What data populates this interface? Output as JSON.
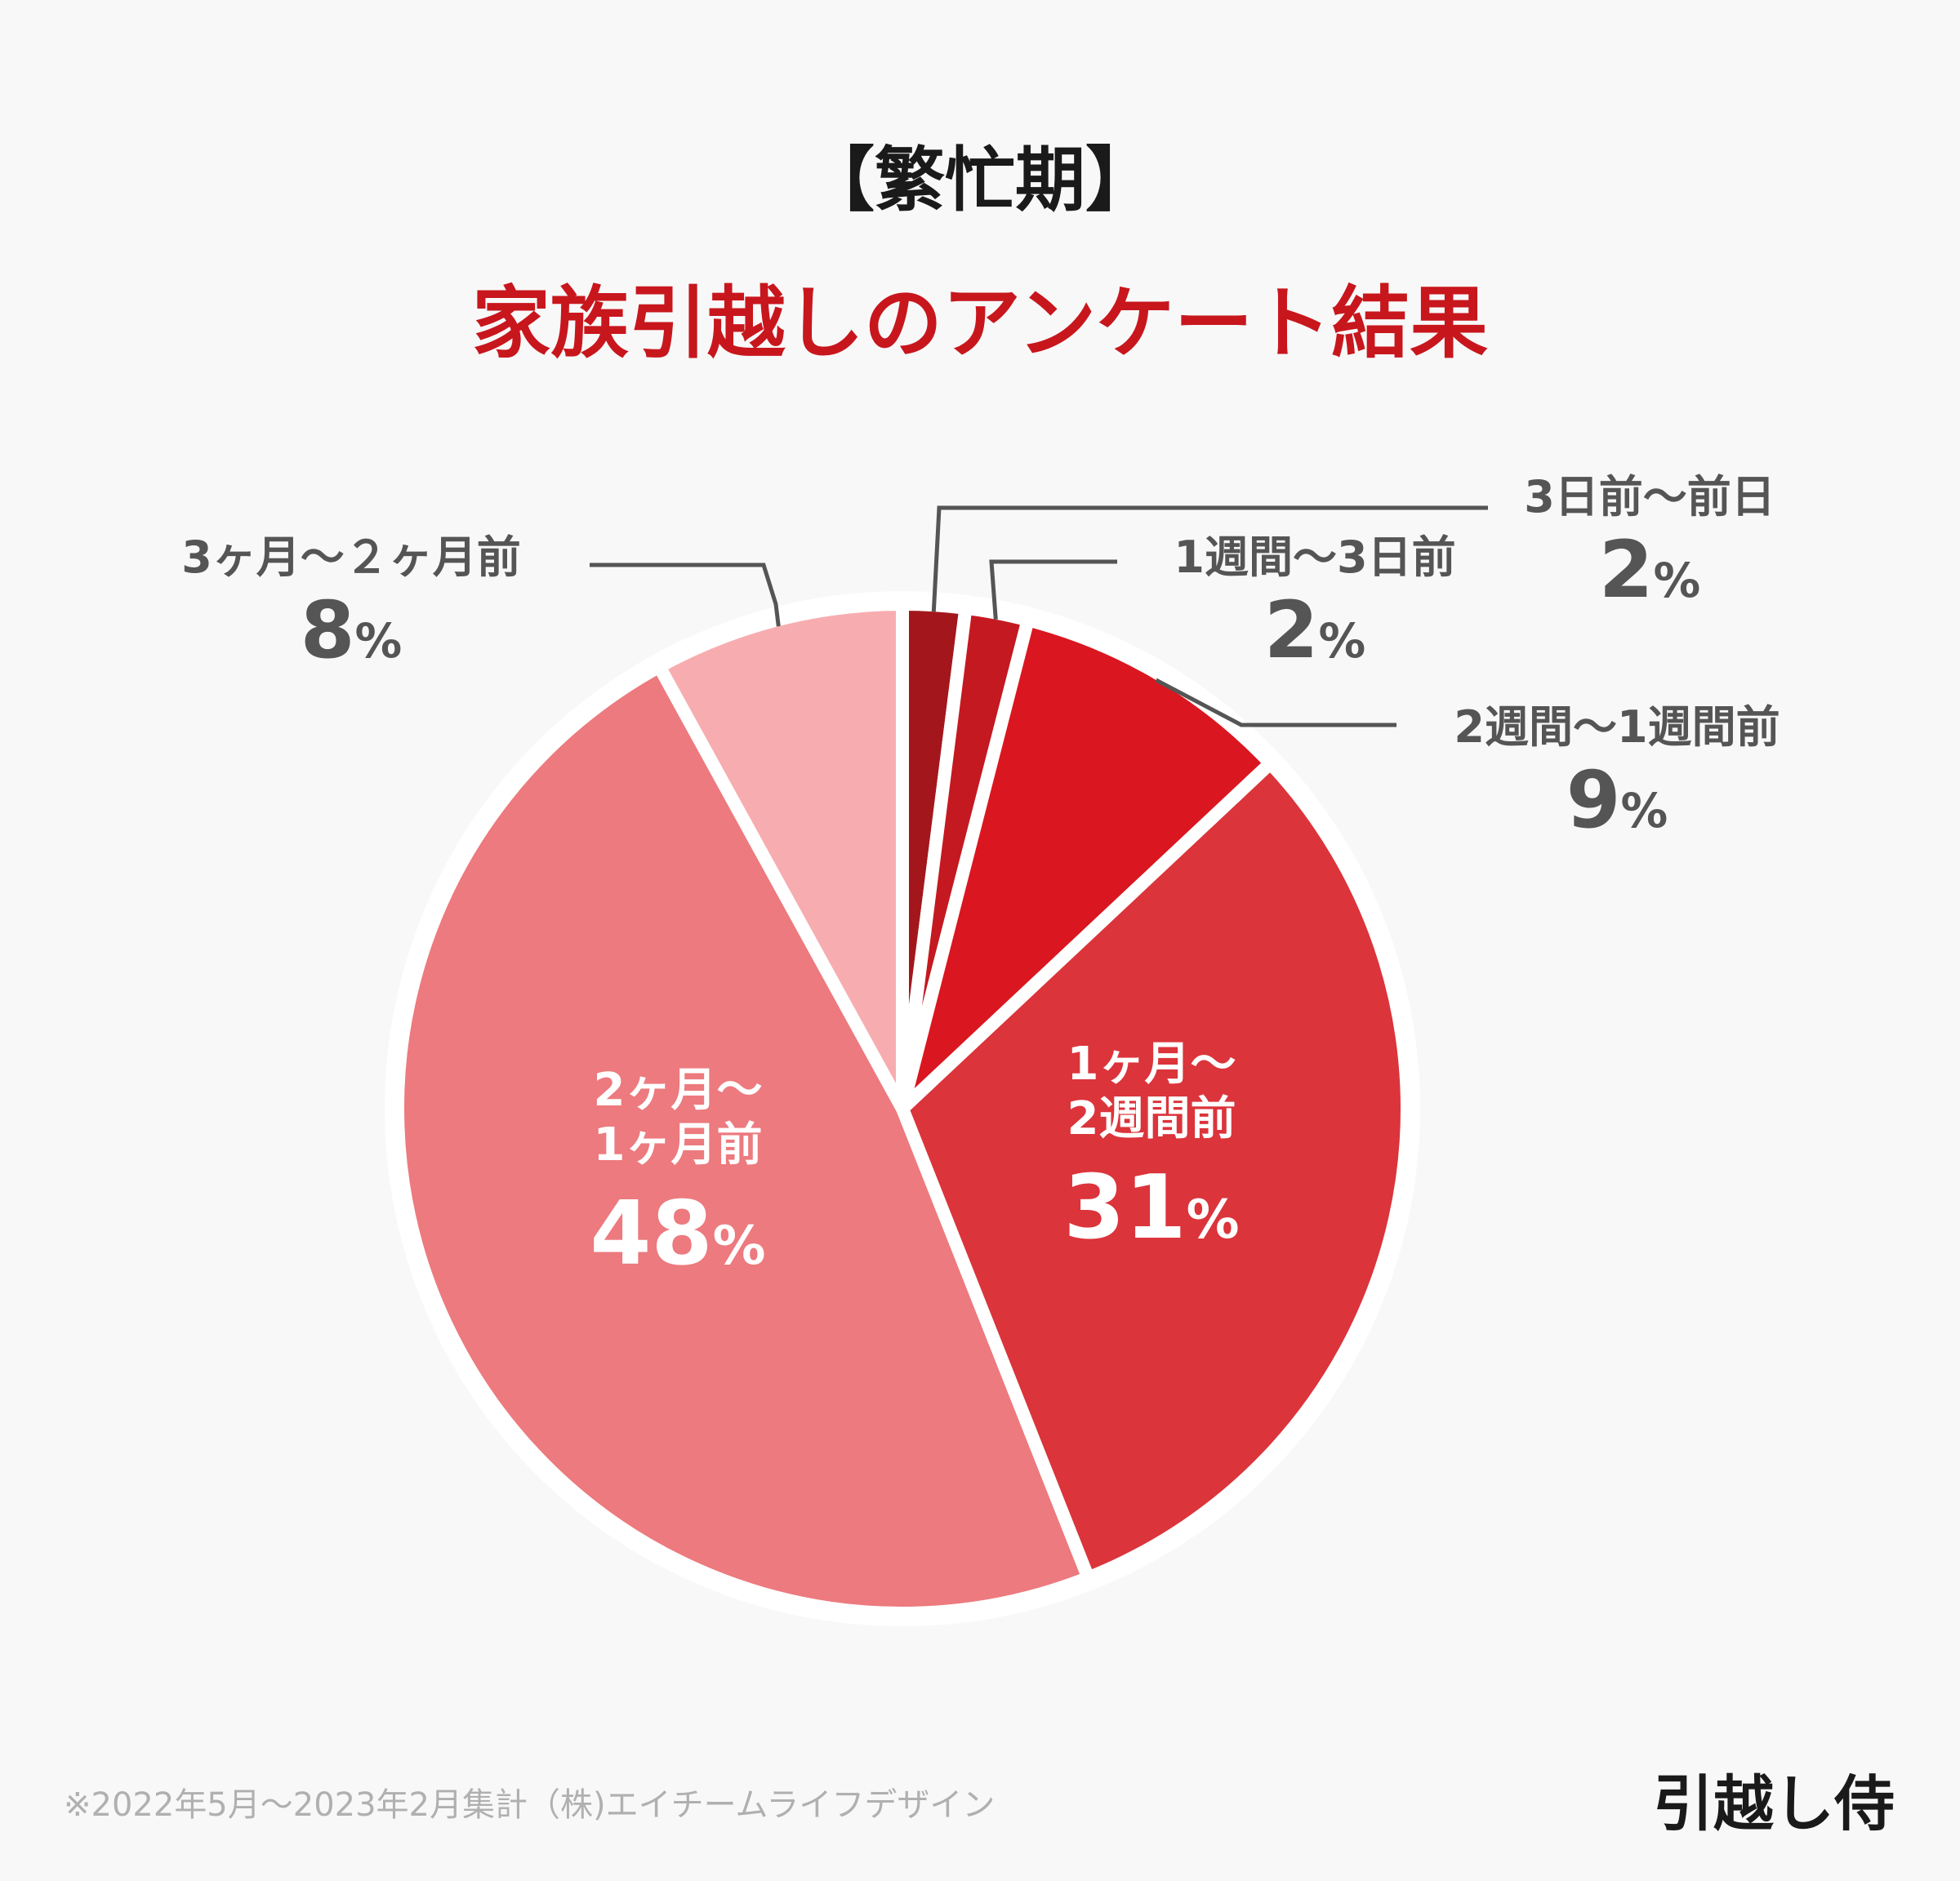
{
  "title_top": "【繁忙期】",
  "title_main": "家族引越しのアンケート結果",
  "chart_data": {
    "type": "pie",
    "slices": [
      {
        "label": "3日前〜前日",
        "value": 2,
        "color": "#a3171c"
      },
      {
        "label": "1週間〜3日前",
        "value": 2,
        "color": "#c41920"
      },
      {
        "label": "2週間〜1週間前",
        "value": 9,
        "color": "#da1720"
      },
      {
        "label": "1ヶ月〜2週間前",
        "value": 31,
        "color": "#db343b"
      },
      {
        "label": "2ヶ月〜1ヶ月前",
        "value": 48,
        "color": "#ec7a7e"
      },
      {
        "label": "3ヶ月〜２ヶ月前",
        "value": 8,
        "color": "#f7adb0"
      }
    ],
    "label_lines": [
      "1ヶ月〜",
      "2週間前",
      "2ヶ月〜",
      "1ヶ月前"
    ],
    "unit": "%"
  },
  "footnote": "※2022年5月〜2023年2月集計（株)エイチームライフデザイン",
  "logo": "引越し侍"
}
